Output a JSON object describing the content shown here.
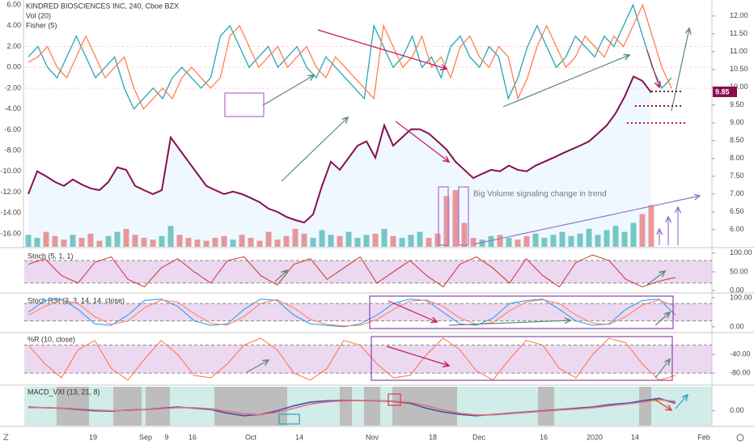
{
  "chart_data": {
    "type": "line",
    "title": "KINDRED BIOSCIENCES INC, 240, Cboe BZX",
    "indicators": [
      "Vol (20)",
      "Fisher (5)"
    ],
    "annotation": "Big Volume signaling change in trend",
    "last_price": 9.85,
    "xticks": [
      "19",
      "Sep",
      "9",
      "16",
      "Oct",
      "14",
      "Nov",
      "18",
      "Dec",
      "16",
      "2020",
      "14",
      "Feb"
    ],
    "price": {
      "color": "#880e4f",
      "ylim": [
        5.52,
        12.45
      ],
      "yticks": [
        {
          "value": 12,
          "label": "12.00"
        },
        {
          "value": 11.5,
          "label": "11.50"
        },
        {
          "value": 11,
          "label": "11.00"
        },
        {
          "value": 10.5,
          "label": "10.50"
        },
        {
          "value": 10,
          "label": "10.00"
        },
        {
          "value": 9.5,
          "label": "9.50"
        },
        {
          "value": 9,
          "label": "9.00"
        },
        {
          "value": 8.5,
          "label": "8.50"
        },
        {
          "value": 8,
          "label": "8.00"
        },
        {
          "value": 7.5,
          "label": "7.50"
        },
        {
          "value": 7,
          "label": "7.00"
        },
        {
          "value": 6.5,
          "label": "6.50"
        },
        {
          "value": 6,
          "label": "6.00"
        }
      ],
      "values": [
        7.0,
        7.64,
        7.5,
        7.34,
        7.23,
        7.41,
        7.27,
        7.16,
        7.11,
        7.34,
        7.75,
        7.68,
        7.23,
        7.11,
        7.0,
        7.11,
        8.59,
        8.25,
        7.91,
        7.57,
        7.23,
        7.11,
        7.0,
        7.07,
        7.0,
        6.89,
        6.77,
        6.59,
        6.5,
        6.36,
        6.27,
        6.2,
        6.43,
        7.23,
        7.91,
        7.68,
        8.02,
        8.36,
        8.48,
        8.02,
        8.93,
        8.36,
        8.59,
        8.82,
        8.82,
        8.7,
        8.48,
        8.25,
        7.91,
        7.68,
        7.45,
        7.57,
        7.68,
        7.64,
        7.8,
        7.68,
        7.64,
        7.8,
        7.91,
        8.02,
        8.14,
        8.25,
        8.36,
        8.48,
        8.7,
        8.93,
        9.27,
        9.73,
        10.3,
        10.18,
        9.85
      ]
    },
    "volume": {
      "up_color": "#26a69a",
      "down_color": "#ef5350",
      "values": [
        20,
        15,
        25,
        18,
        12,
        20,
        15,
        22,
        10,
        18,
        25,
        30,
        20,
        15,
        12,
        18,
        35,
        20,
        15,
        12,
        10,
        15,
        18,
        12,
        20,
        15,
        10,
        25,
        12,
        18,
        30,
        22,
        15,
        28,
        20,
        18,
        25,
        15,
        20,
        22,
        30,
        18,
        15,
        20,
        25,
        15,
        22,
        85,
        95,
        40,
        15,
        12,
        18,
        20,
        15,
        12,
        18,
        22,
        15,
        20,
        25,
        18,
        22,
        30,
        20,
        28,
        35,
        25,
        40,
        55,
        70
      ]
    },
    "fisher": {
      "ylim": [
        -17.24,
        6.47
      ],
      "yticks": [
        {
          "value": 6,
          "label": "6.00"
        },
        {
          "value": 4,
          "label": "4.00"
        },
        {
          "value": 2,
          "label": "2.00"
        },
        {
          "value": 0,
          "label": "0.00"
        },
        {
          "value": -2,
          "label": "-2.00"
        },
        {
          "value": -4,
          "label": "-4.00"
        },
        {
          "value": -6,
          "label": "-6.00"
        },
        {
          "value": -8,
          "label": "-8.00"
        },
        {
          "value": -10,
          "label": "-10.00"
        },
        {
          "value": -12,
          "label": "-12.00"
        },
        {
          "value": -14,
          "label": "-14.00"
        },
        {
          "value": -16,
          "label": "-16.00"
        }
      ],
      "series": [
        {
          "color": "#26a6b5",
          "values": [
            1,
            2,
            0,
            -1,
            1,
            3,
            1,
            -1,
            0,
            1,
            -2,
            -4,
            -3,
            -2,
            -3,
            -1,
            0,
            -1,
            -2,
            -1,
            3,
            4,
            2,
            0,
            1,
            2,
            0,
            1,
            2,
            0,
            -1,
            1,
            0,
            -1,
            -2,
            -3,
            4,
            2,
            0,
            1,
            3,
            0,
            1,
            -1,
            2,
            3,
            1,
            0,
            2,
            1,
            -3,
            -1,
            2,
            4,
            2,
            0,
            1,
            3,
            2,
            1,
            3,
            2,
            4,
            6,
            3,
            0,
            -2,
            -1
          ]
        },
        {
          "color": "#ff7f50",
          "values": [
            0.5,
            1,
            2,
            0,
            -1,
            1,
            3,
            1,
            -1,
            0,
            1,
            -2,
            -4,
            -3,
            -2,
            -3,
            -1,
            0,
            -1,
            -2,
            -1,
            3,
            4,
            2,
            0,
            1,
            2,
            0,
            1,
            2,
            0,
            -1,
            1,
            0,
            -1,
            -2,
            -3,
            4,
            2,
            0,
            1,
            3,
            0,
            1,
            -1,
            2,
            3,
            1,
            0,
            2,
            1,
            -3,
            -1,
            2,
            4,
            2,
            0,
            1,
            3,
            2,
            1,
            3,
            2,
            4,
            6,
            3,
            0,
            -2
          ]
        }
      ]
    },
    "panes": [
      {
        "title": "Stoch (5, 1, 1)",
        "ylim": [
          -4,
          106
        ],
        "band": [
          20,
          80
        ],
        "yticks": [
          {
            "value": 100,
            "label": "100.00"
          },
          {
            "value": 50,
            "label": "50.00"
          },
          {
            "value": 0,
            "label": "0.00"
          }
        ],
        "series": [
          {
            "color": "#c0392b",
            "values": [
              70,
              85,
              40,
              20,
              75,
              90,
              30,
              10,
              60,
              85,
              50,
              20,
              80,
              90,
              40,
              15,
              70,
              85,
              30,
              60,
              90,
              20,
              50,
              80,
              40,
              10,
              70,
              90,
              60,
              20,
              85,
              40,
              10,
              75,
              95,
              80,
              30,
              10,
              25,
              35
            ]
          }
        ]
      },
      {
        "title": "Stoch RSI (3, 3, 14, 14, close)",
        "ylim": [
          -17,
          108
        ],
        "band": [
          20,
          80
        ],
        "yticks": [
          {
            "value": 100,
            "label": "100.00"
          },
          {
            "value": 0,
            "label": "0.00"
          }
        ],
        "series": [
          {
            "color": "#2196f3",
            "values": [
              50,
              90,
              95,
              60,
              10,
              5,
              40,
              90,
              95,
              70,
              20,
              5,
              10,
              60,
              95,
              90,
              40,
              10,
              5,
              0,
              10,
              40,
              80,
              95,
              90,
              50,
              10,
              5,
              30,
              80,
              90,
              95,
              60,
              20,
              5,
              10,
              60,
              90,
              95,
              40
            ]
          },
          {
            "color": "#ff7f50",
            "values": [
              40,
              70,
              92,
              80,
              35,
              8,
              20,
              65,
              92,
              85,
              45,
              12,
              6,
              35,
              80,
              93,
              65,
              25,
              8,
              3,
              5,
              25,
              60,
              88,
              92,
              70,
              30,
              8,
              15,
              55,
              85,
              93,
              80,
              40,
              12,
              8,
              35,
              75,
              92,
              70
            ]
          }
        ]
      },
      {
        "title": "%R (10, close)",
        "ylim": [
          -104,
          3.5
        ],
        "band": [
          -80,
          -20
        ],
        "yticks": [
          {
            "value": -40,
            "label": "-40.00"
          },
          {
            "value": -80,
            "label": "-80.00"
          }
        ],
        "series": [
          {
            "color": "#ff7043",
            "values": [
              -20,
              -60,
              -90,
              -30,
              -10,
              -70,
              -95,
              -50,
              -10,
              -40,
              -85,
              -90,
              -60,
              -20,
              -5,
              -30,
              -80,
              -95,
              -70,
              -10,
              -20,
              -60,
              -90,
              -85,
              -40,
              -5,
              -30,
              -75,
              -95,
              -50,
              -10,
              -20,
              -70,
              -90,
              -40,
              -5,
              -15,
              -60,
              -95,
              -85
            ]
          }
        ]
      },
      {
        "title": "MACD_VXI (13, 21, 8)",
        "ylim": [
          -0.6,
          0.97
        ],
        "band": null,
        "yticks": [
          {
            "value": 0,
            "label": "0.00"
          }
        ],
        "series": [
          {
            "color": "#3f51b5",
            "values": [
              0.15,
              0.12,
              0.1,
              0.05,
              0,
              -0.02,
              0.03,
              0.05,
              0.1,
              0.15,
              0.1,
              0.05,
              -0.1,
              -0.2,
              -0.15,
              0,
              0.2,
              0.35,
              0.4,
              0.42,
              0.42,
              0.4,
              0.38,
              0.3,
              0.1,
              -0.05,
              -0.15,
              -0.2,
              -0.15,
              -0.1,
              -0.05,
              0,
              0.05,
              0.1,
              0.15,
              0.25,
              0.3,
              0.4,
              0.5,
              0.3
            ]
          },
          {
            "color": "#e57373",
            "values": [
              0.12,
              0.13,
              0.11,
              0.08,
              0.03,
              0,
              0.01,
              0.04,
              0.08,
              0.12,
              0.12,
              0.08,
              -0.02,
              -0.12,
              -0.16,
              -0.06,
              0.1,
              0.27,
              0.36,
              0.4,
              0.42,
              0.41,
              0.39,
              0.34,
              0.2,
              0.03,
              -0.1,
              -0.17,
              -0.17,
              -0.12,
              -0.07,
              -0.02,
              0.03,
              0.07,
              0.12,
              0.2,
              0.27,
              0.35,
              0.45,
              0.38
            ]
          }
        ]
      }
    ]
  }
}
